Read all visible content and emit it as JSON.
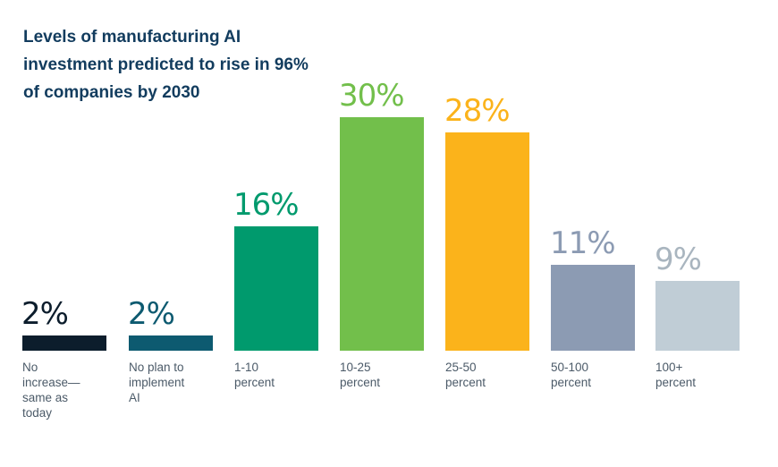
{
  "chart_data": {
    "type": "bar",
    "title": "Levels of manufacturing AI investment predicted to rise in 96% of companies by 2030",
    "categories": [
      "No increase—same as today",
      "No plan to implement AI",
      "1-10 percent",
      "10-25 percent",
      "25-50 percent",
      "50-100 percent",
      "100+ percent"
    ],
    "category_lines": [
      [
        "No",
        "increase—",
        "same as",
        "today"
      ],
      [
        "No plan to",
        "implement",
        "AI"
      ],
      [
        "1-10",
        "percent"
      ],
      [
        "10-25",
        "percent"
      ],
      [
        "25-50",
        "percent"
      ],
      [
        "50-100",
        "percent"
      ],
      [
        "100+",
        "percent"
      ]
    ],
    "values": [
      2,
      2,
      16,
      30,
      28,
      11,
      9
    ],
    "data_labels": [
      "2%",
      "2%",
      "16%",
      "30%",
      "28%",
      "11%",
      "9%"
    ],
    "colors": [
      "#0c1d2c",
      "#0d5a70",
      "#009a6d",
      "#72bf4b",
      "#fbb31b",
      "#8c9bb3",
      "#c0cdd6"
    ],
    "label_colors": [
      "#0c1d2c",
      "#0d5a70",
      "#009a6d",
      "#72bf4b",
      "#fbb31b",
      "#8c9bb3",
      "#a9b5bf"
    ],
    "xlabel": "",
    "ylabel": "",
    "ylim": [
      0,
      30
    ],
    "grid": false,
    "legend": "none"
  }
}
